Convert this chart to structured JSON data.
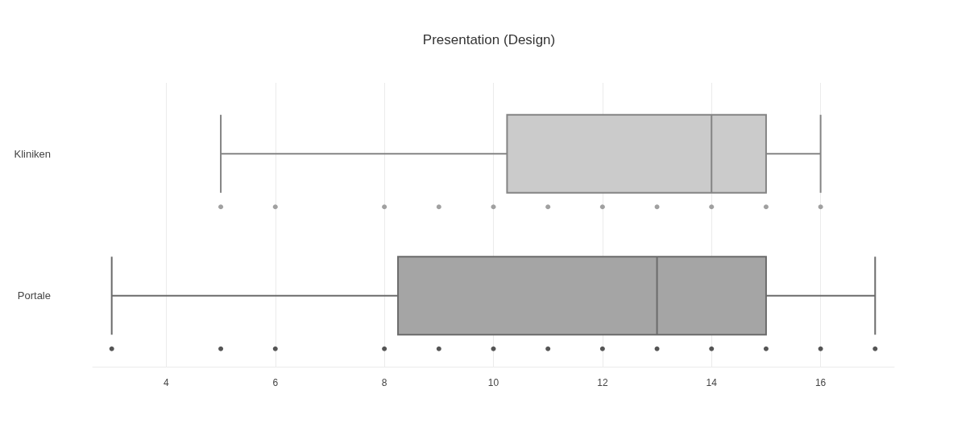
{
  "chart_data": {
    "type": "box",
    "title": "Presentation (Design)",
    "orientation": "horizontal",
    "categories": [
      "Kliniken",
      "Portale"
    ],
    "xlim": [
      2.65,
      17.35
    ],
    "xticks": [
      4,
      6,
      8,
      10,
      12,
      14,
      16
    ],
    "grid": "x",
    "marker": "circle",
    "series": [
      {
        "type": "box",
        "colors": [
          "#cbcbcb",
          "#a5a5a5"
        ],
        "boxes": [
          {
            "low": 5,
            "q1": 10.25,
            "median": 14,
            "q3": 15,
            "high": 16
          },
          {
            "low": 3,
            "q1": 8.25,
            "median": 13,
            "q3": 15,
            "high": 17
          }
        ]
      },
      {
        "type": "scatter",
        "color": "#a0a0a0",
        "x": [
          "Kliniken",
          "Kliniken",
          "Kliniken",
          "Kliniken",
          "Kliniken",
          "Kliniken",
          "Kliniken",
          "Kliniken",
          "Kliniken",
          "Kliniken",
          "Kliniken"
        ],
        "values": [
          5,
          6,
          8,
          9,
          10,
          11,
          12,
          13,
          14,
          15,
          16
        ]
      },
      {
        "type": "scatter",
        "color": "#555555",
        "x": [
          "Portale",
          "Portale",
          "Portale",
          "Portale",
          "Portale",
          "Portale",
          "Portale",
          "Portale",
          "Portale",
          "Portale",
          "Portale",
          "Portale",
          "Portale"
        ],
        "values": [
          3,
          5,
          6,
          8,
          9,
          10,
          11,
          12,
          13,
          14,
          15,
          16,
          17
        ]
      }
    ]
  }
}
